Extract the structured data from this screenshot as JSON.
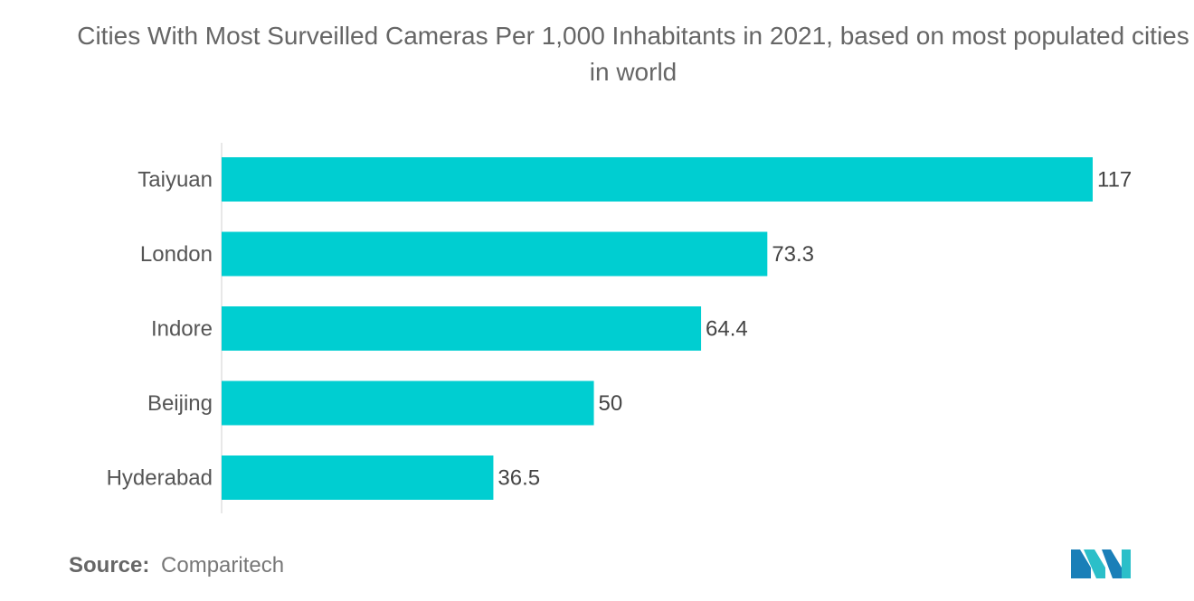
{
  "chart_data": {
    "type": "bar",
    "orientation": "horizontal",
    "title": "Cities With Most Surveilled Cameras Per 1,000 Inhabitants in 2021, based on most populated cities in world",
    "categories": [
      "Taiyuan",
      "London",
      "Indore",
      "Beijing",
      "Hyderabad"
    ],
    "values": [
      117,
      73.3,
      64.4,
      50,
      36.5
    ],
    "value_labels": [
      "117",
      "73.3",
      "64.4",
      "50",
      "36.5"
    ],
    "xlim": [
      0,
      117
    ],
    "grid": false,
    "bar_color": "#00CED1"
  },
  "source": {
    "label": "Source:",
    "value": "Comparitech"
  },
  "logo": {
    "icon": "mordor-intelligence-logo-icon",
    "colors": [
      "#1A7FB8",
      "#2BBFC9"
    ]
  }
}
